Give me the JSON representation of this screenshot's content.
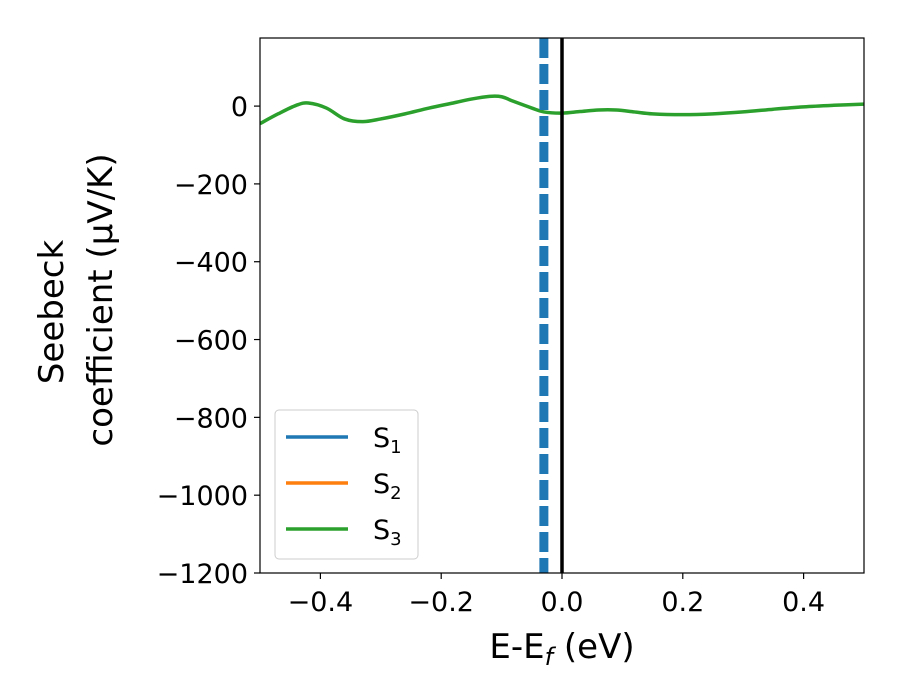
{
  "chart_data": {
    "type": "line",
    "xlabel": "E-E",
    "xlabel_sub": "f",
    "xlabel_unit": " (eV)",
    "ylabel_lines": [
      "Seebeck",
      "coefficient  (μV/K)"
    ],
    "xlim": [
      -0.5,
      0.5
    ],
    "ylim": [
      -1200,
      175
    ],
    "x_ticks": [
      {
        "value": -0.4,
        "label": "−0.4"
      },
      {
        "value": -0.2,
        "label": "−0.2"
      },
      {
        "value": 0.0,
        "label": "0.0"
      },
      {
        "value": 0.2,
        "label": "0.2"
      },
      {
        "value": 0.4,
        "label": "0.4"
      }
    ],
    "y_ticks": [
      {
        "value": 0,
        "label": "0"
      },
      {
        "value": -200,
        "label": "−200"
      },
      {
        "value": -400,
        "label": "−400"
      },
      {
        "value": -600,
        "label": "−600"
      },
      {
        "value": -800,
        "label": "−800"
      },
      {
        "value": -1000,
        "label": "−1000"
      },
      {
        "value": -1200,
        "label": "−1200"
      }
    ],
    "legend_placement": "lower-left",
    "series": [
      {
        "name": "S",
        "sub": "1",
        "color": "#1f77b4",
        "x": [],
        "y": []
      },
      {
        "name": "S",
        "sub": "2",
        "color": "#ff7f0e",
        "x": [],
        "y": []
      },
      {
        "name": "S",
        "sub": "3",
        "color": "#2ca02c",
        "x": [
          -0.5,
          -0.47,
          -0.44,
          -0.42,
          -0.39,
          -0.36,
          -0.33,
          -0.3,
          -0.26,
          -0.22,
          -0.18,
          -0.15,
          -0.12,
          -0.1,
          -0.08,
          -0.05,
          -0.03,
          0.0,
          0.03,
          0.06,
          0.09,
          0.12,
          0.15,
          0.2,
          0.25,
          0.3,
          0.35,
          0.4,
          0.45,
          0.5
        ],
        "y": [
          -45,
          -20,
          2,
          8,
          -5,
          -33,
          -40,
          -33,
          -20,
          -5,
          8,
          18,
          25,
          24,
          12,
          -5,
          -15,
          -18,
          -14,
          -10,
          -10,
          -15,
          -20,
          -22,
          -20,
          -15,
          -8,
          -2,
          2,
          5
        ]
      }
    ],
    "vlines": [
      {
        "x": -0.03,
        "style": "dashed",
        "color": "#1f77b4"
      },
      {
        "x": 0.0,
        "style": "solid",
        "color": "#000000"
      }
    ]
  }
}
